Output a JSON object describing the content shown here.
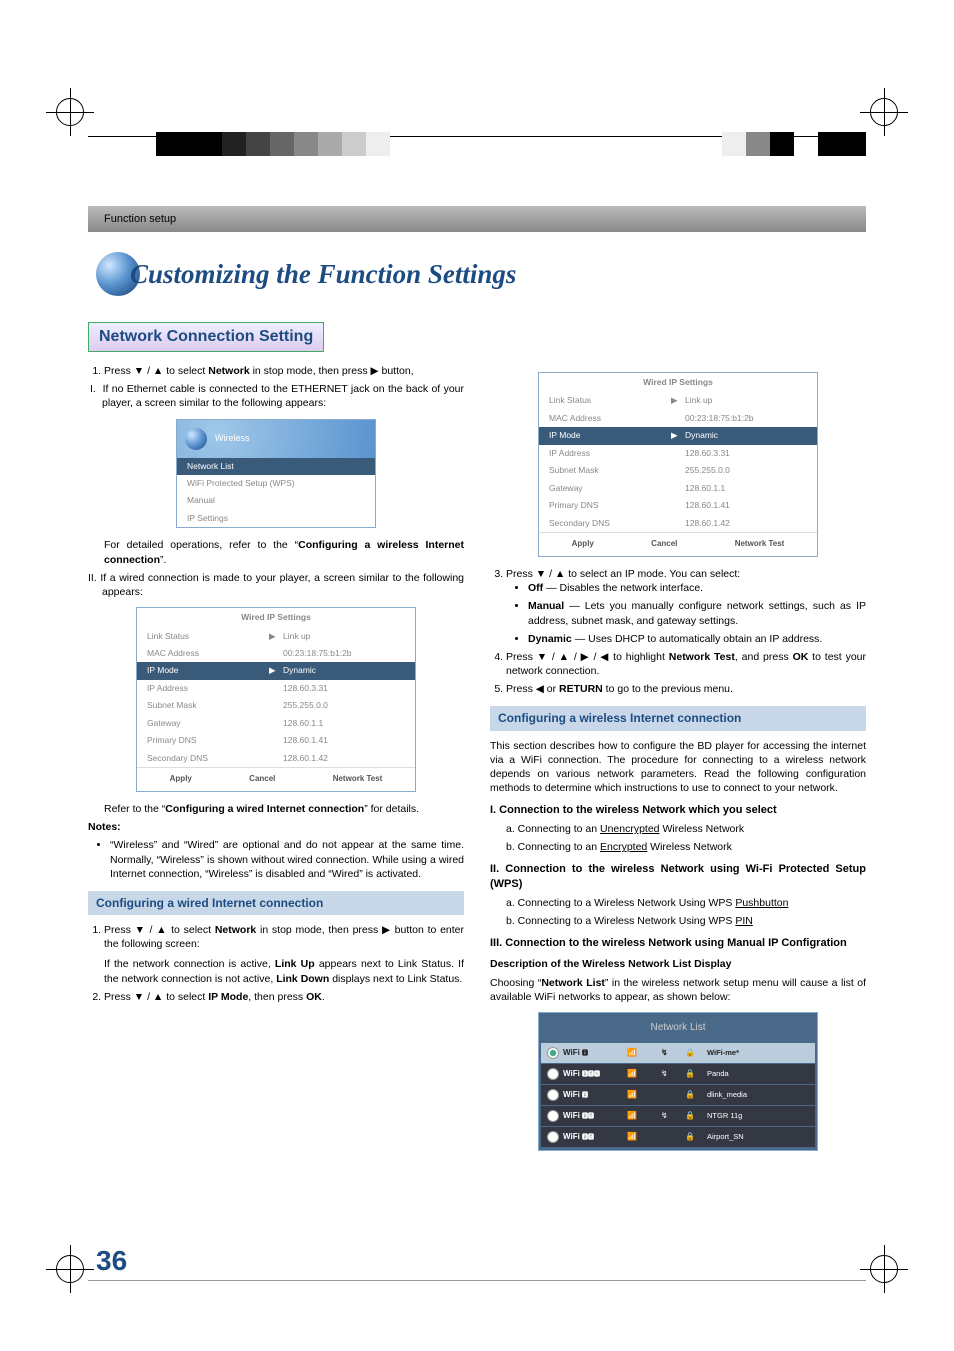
{
  "header_strip": "Function setup",
  "chapter_title": "Customizing the Function Settings",
  "section_title": "Network Connection Setting",
  "page_number": "36",
  "colors": {
    "heading": "#1d4c82",
    "sphere_light": "#d0e8ff",
    "sphere_mid": "#5a94d0",
    "sphere_dark": "#1d4c82",
    "ui_selected_bg": "#3a5a7a",
    "grey_text": "#888888"
  },
  "left_col": {
    "step1": "Press ▼ / ▲ to select ",
    "step1_bold": "Network",
    "step1_end": " in stop mode, then press ▶ button,",
    "I_text": "If no Ethernet cable is connected to the ETHERNET jack on the back of your player, a screen similar to the following appears:",
    "wireless_box": {
      "title": "Wireless",
      "items": [
        "Network List",
        "WiFi Protected Setup (WPS)",
        "Manual",
        "IP Settings"
      ]
    },
    "I_detail": "For detailed operations, refer to the “",
    "I_detail_bold": "Configuring a wireless Internet connection",
    "I_detail_end": "”.",
    "II_text": "If a wired connection is made to your player, a screen similar to the following appears:",
    "ip_box": {
      "title": "Wired IP Settings",
      "rows": [
        {
          "label": "Link Status",
          "arrow": "▶",
          "val": "Link up"
        },
        {
          "label": "MAC Address",
          "arrow": "",
          "val": "00:23:18:75:b1:2b"
        },
        {
          "label": "IP Mode",
          "arrow": "▶",
          "val": "Dynamic",
          "selected": true
        },
        {
          "label": "IP Address",
          "arrow": "",
          "val": "128.60.3.31"
        },
        {
          "label": "Subnet Mask",
          "arrow": "",
          "val": "255.255.0.0"
        },
        {
          "label": "Gateway",
          "arrow": "",
          "val": "128.60.1.1"
        },
        {
          "label": "Primary DNS",
          "arrow": "",
          "val": "128.60.1.41"
        },
        {
          "label": "Secondary DNS",
          "arrow": "",
          "val": "128.60.1.42"
        }
      ],
      "footer": [
        "Apply",
        "Cancel",
        "Network Test"
      ]
    },
    "II_detail": "Refer to the “",
    "II_detail_bold": "Configuring a wired Internet connection",
    "II_detail_end": "” for details.",
    "notes_h": "Notes:",
    "note1": "“Wireless” and “Wired” are optional and do not appear at the same time. Normally, “Wireless” is shown without wired connection. While using a wired Internet connection, “Wireless” is disabled and “Wired” is activated.",
    "subsec1_title": "Configuring a wired Internet connection",
    "wired_step1": "Press ▼ / ▲ to select ",
    "wired_step1_bold": "Network",
    "wired_step1_end": " in stop mode, then press ▶ button to enter the following screen:",
    "wired_after1a": "If the network connection is active, ",
    "wired_after1a_bold": "Link Up",
    "wired_after1b": " appears next to Link Status. If the network connection is not active, ",
    "wired_after1b_bold": "Link Down",
    "wired_after1c": " displays next to Link Status.",
    "wired_step2": "Press ▼ / ▲ to select ",
    "wired_step2_bold": "IP Mode",
    "wired_step2_end": ", then press ",
    "wired_step2_bold2": "OK",
    "wired_step2_end2": "."
  },
  "right_col": {
    "ip_box": {
      "title": "Wired IP Settings",
      "rows": [
        {
          "label": "Link Status",
          "arrow": "▶",
          "val": "Link up"
        },
        {
          "label": "MAC Address",
          "arrow": "",
          "val": "00:23:18:75:b1:2b"
        },
        {
          "label": "IP Mode",
          "arrow": "▶",
          "val": "Dynamic",
          "selected": true
        },
        {
          "label": "IP Address",
          "arrow": "",
          "val": "128.60.3.31"
        },
        {
          "label": "Subnet Mask",
          "arrow": "",
          "val": "255.255.0.0"
        },
        {
          "label": "Gateway",
          "arrow": "",
          "val": "128.60.1.1"
        },
        {
          "label": "Primary DNS",
          "arrow": "",
          "val": "128.60.1.41"
        },
        {
          "label": "Secondary DNS",
          "arrow": "",
          "val": "128.60.1.42"
        }
      ],
      "footer": [
        "Apply",
        "Cancel",
        "Network Test"
      ]
    },
    "step3": "Press ▼ / ▲ to select an IP mode. You can select:",
    "step3_off_bold": "Off",
    "step3_off": " — Disables the network interface.",
    "step3_manual_bold": "Manual",
    "step3_manual": " — Lets you manually configure network settings, such as IP address, subnet mask, and gateway settings.",
    "step3_dyn_bold": "Dynamic",
    "step3_dyn": " — Uses DHCP to automatically obtain an IP address.",
    "step4": "Press ▼ / ▲ /  ▶ / ◀ to highlight ",
    "step4_bold": "Network Test",
    "step4_mid": ", and press ",
    "step4_bold2": "OK",
    "step4_end": " to test your network connection.",
    "step5": "Press ◀ or ",
    "step5_bold": "RETURN",
    "step5_end": " to go to the previous menu.",
    "subsec2_title": "Configuring a wireless Internet connection",
    "wl_intro": "This section describes how to configure the BD player for accessing the internet via a WiFi connection. The procedure for connecting to a wireless network depends on various network parameters. Read the following configuration methods to determine which instructions to use to connect to your network.",
    "roman_I": "I.  Connection to the wireless Network which you select",
    "roman_I_a": "a. Connecting to an ",
    "roman_I_a_u": "Unencrypted",
    "roman_I_a_end": " Wireless Network",
    "roman_I_b": "b. Connecting to an ",
    "roman_I_b_u": "Encrypted",
    "roman_I_b_end": " Wireless Network",
    "roman_II": "II. Connection to the wireless Network using Wi-Fi Protected Setup (WPS)",
    "roman_II_a": "a. Connecting to a Wireless Network Using WPS ",
    "roman_II_a_u": "Pushbutton",
    "roman_II_b": "b. Connecting to a Wireless Network Using WPS ",
    "roman_II_b_u": "PIN",
    "roman_III": "III. Connection to the wireless Network using Manual IP Configration",
    "desc_h": "Description of the Wireless Network List Display",
    "desc_text": "Choosing “",
    "desc_text_bold": "Network List",
    "desc_text_end": "” in the wireless network setup menu will cause a list of available WiFi networks to appear, as shown below:",
    "net_list": {
      "title": "Network List",
      "rows": [
        {
          "sel": true,
          "name": "WiFi",
          "badges": "🅱",
          "bars": "📶",
          "link": "↯",
          "lock": "🔒",
          "ssid": "WiFi-me*"
        },
        {
          "sel": false,
          "name": "WiFi",
          "badges": "🅱🅶🅽",
          "bars": "📶",
          "link": "↯",
          "lock": "🔒",
          "ssid": "Panda"
        },
        {
          "sel": false,
          "name": "WiFi",
          "badges": "🅱",
          "bars": "📶",
          "link": "",
          "lock": "🔒",
          "ssid": "dlink_media"
        },
        {
          "sel": false,
          "name": "WiFi",
          "badges": "🅱🅶",
          "bars": "📶",
          "link": "↯",
          "lock": "🔒",
          "ssid": "NTGR 11g"
        },
        {
          "sel": false,
          "name": "WiFi",
          "badges": "🅱🅶",
          "bars": "📶",
          "link": "",
          "lock": "🔒",
          "ssid": "Airport_SN"
        }
      ]
    }
  }
}
